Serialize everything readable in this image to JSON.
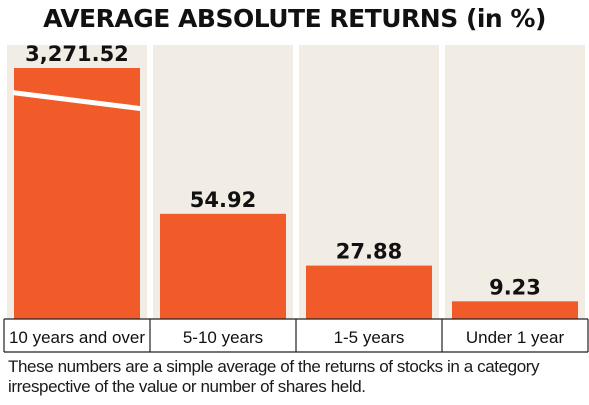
{
  "chart_data": {
    "type": "bar",
    "title": "AVERAGE ABSOLUTE RETURNS (in %)",
    "categories": [
      "10 years and over",
      "5-10 years",
      "1-5 years",
      "Under 1 year"
    ],
    "values": [
      3271.52,
      54.92,
      27.88,
      9.23
    ],
    "value_labels": [
      "3,271.52",
      "54.92",
      "27.88",
      "9.23"
    ],
    "axis_break": {
      "series_index": 0,
      "display": "broken bar"
    },
    "xlabel": "",
    "ylabel": "",
    "ylim": [
      0,
      130
    ],
    "grid": false,
    "legend": "none",
    "colors": {
      "bar": "#f15a29",
      "column_background": "#f1ece4",
      "axis": "#222222",
      "text": "#111111"
    }
  },
  "footnote": "These numbers are a simple average of the returns of stocks in a category irrespective of the value or number of shares held."
}
